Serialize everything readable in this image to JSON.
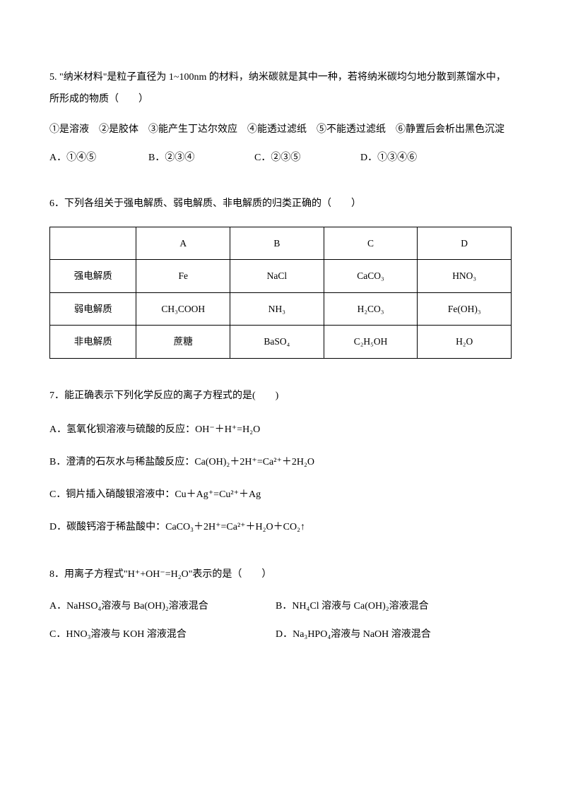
{
  "q5": {
    "text1": "5. \"纳米材料\"是粒子直径为 1~100nm 的材料，纳米碳就是其中一种，若将纳米碳均匀地分散到蒸馏水中，所形成的物质（　　）",
    "conditions": "①是溶液　②是胶体　③能产生丁达尔效应　④能透过滤纸　⑤不能透过滤纸　⑥静置后会析出黑色沉淀",
    "optA": "A．①④⑤",
    "optB": "B．②③④",
    "optC": "C．②③⑤",
    "optD": "D．①③④⑥"
  },
  "q6": {
    "text": "6．下列各组关于强电解质、弱电解质、非电解质的归类正确的（　　）",
    "table": {
      "header": [
        "",
        "A",
        "B",
        "C",
        "D"
      ],
      "row1_label": "强电解质",
      "row1": [
        "Fe",
        "NaCl",
        "CaCO₃",
        "HNO₃"
      ],
      "row2_label": "弱电解质",
      "row2": [
        "CH₃COOH",
        "NH₃",
        "H₂CO₃",
        "Fe(OH)₃"
      ],
      "row3_label": "非电解质",
      "row3": [
        "蔗糖",
        "BaSO₄",
        "C₂H₅OH",
        "H₂O"
      ]
    }
  },
  "q7": {
    "text": "7．能正确表示下列化学反应的离子方程式的是(　　)",
    "optA": "A．氢氧化钡溶液与硫酸的反应：OH⁻＋H⁺=H₂O",
    "optB": "B．澄清的石灰水与稀盐酸反应：Ca(OH)₂＋2H⁺=Ca²⁺＋2H₂O",
    "optC": "C．铜片插入硝酸银溶液中：Cu＋Ag⁺=Cu²⁺＋Ag",
    "optD": "D．碳酸钙溶于稀盐酸中：CaCO₃＋2H⁺=Ca²⁺＋H₂O＋CO₂↑"
  },
  "q8": {
    "text": "8．用离子方程式\"H⁺+OH⁻=H₂O\"表示的是（　　）",
    "optA": "A．NaHSO₄溶液与 Ba(OH)₂溶液混合",
    "optB": "B．NH₄Cl 溶液与 Ca(OH)₂溶液混合",
    "optC": "C．HNO₃溶液与 KOH 溶液混合",
    "optD": "D．Na₃HPO₄溶液与 NaOH 溶液混合"
  }
}
